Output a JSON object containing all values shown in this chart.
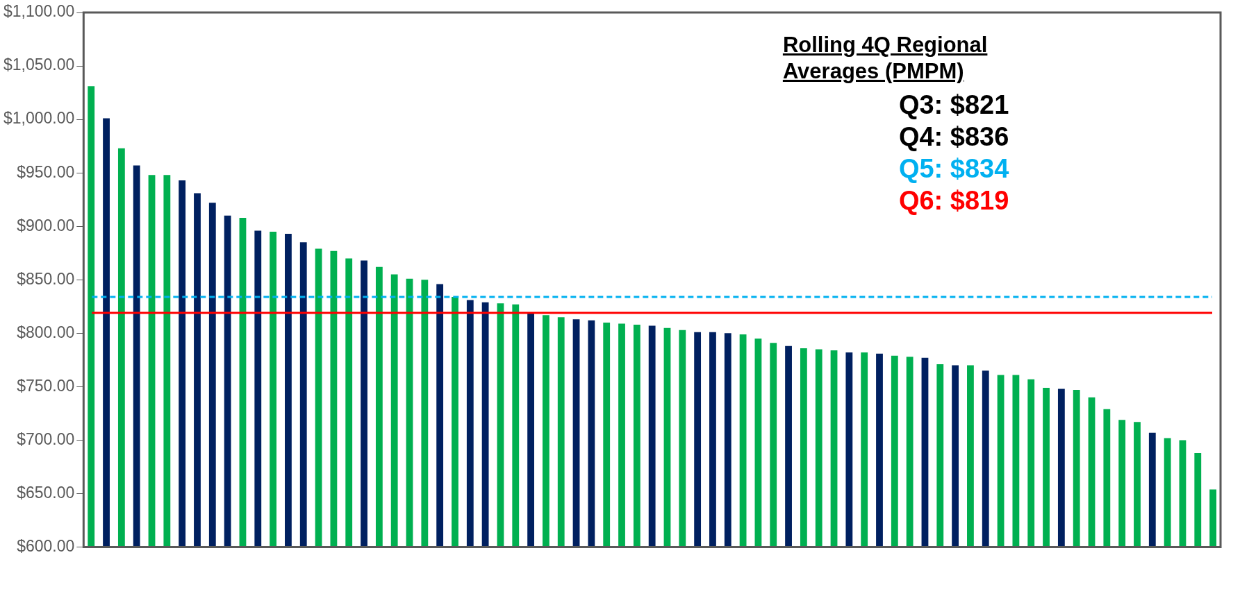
{
  "chart_data": {
    "type": "bar",
    "categories": [
      null,
      null,
      null,
      null,
      null,
      null,
      null,
      null,
      null,
      null,
      null,
      null,
      null,
      null,
      null,
      null,
      null,
      null,
      null,
      null,
      null,
      null,
      null,
      null,
      null,
      null,
      null,
      null,
      null,
      null,
      null,
      null,
      null,
      null,
      null,
      null,
      null,
      null,
      null,
      null,
      null,
      null,
      null,
      null,
      null,
      null,
      null,
      null,
      null,
      null,
      null,
      null,
      null,
      null,
      null,
      null,
      null,
      null,
      null,
      null,
      null,
      null,
      null,
      null,
      null,
      null,
      null,
      null,
      null,
      null,
      null,
      null,
      null,
      null,
      null
    ],
    "values": [
      1031,
      1001,
      973,
      957,
      948,
      948,
      943,
      931,
      922,
      910,
      908,
      896,
      895,
      893,
      885,
      879,
      877,
      870,
      868,
      862,
      855,
      851,
      850,
      846,
      834,
      831,
      829,
      828,
      827,
      819,
      817,
      815,
      813,
      812,
      810,
      809,
      808,
      807,
      805,
      803,
      801,
      801,
      800,
      799,
      795,
      791,
      788,
      786,
      785,
      784,
      782,
      782,
      781,
      779,
      778,
      777,
      771,
      770,
      770,
      765,
      761,
      761,
      757,
      749,
      748,
      747,
      740,
      729,
      719,
      717,
      707,
      702,
      700,
      688,
      654
    ],
    "colors": [
      "#00b050",
      "#002060",
      "#00b050",
      "#002060",
      "#00b050",
      "#00b050",
      "#002060",
      "#002060",
      "#002060",
      "#002060",
      "#00b050",
      "#002060",
      "#00b050",
      "#002060",
      "#002060",
      "#00b050",
      "#00b050",
      "#00b050",
      "#002060",
      "#00b050",
      "#00b050",
      "#00b050",
      "#00b050",
      "#002060",
      "#00b050",
      "#002060",
      "#002060",
      "#00b050",
      "#00b050",
      "#002060",
      "#00b050",
      "#00b050",
      "#002060",
      "#002060",
      "#00b050",
      "#00b050",
      "#00b050",
      "#002060",
      "#00b050",
      "#00b050",
      "#002060",
      "#002060",
      "#002060",
      "#00b050",
      "#00b050",
      "#00b050",
      "#002060",
      "#00b050",
      "#00b050",
      "#00b050",
      "#002060",
      "#00b050",
      "#002060",
      "#00b050",
      "#00b050",
      "#002060",
      "#00b050",
      "#002060",
      "#00b050",
      "#002060",
      "#00b050",
      "#00b050",
      "#00b050",
      "#00b050",
      "#002060",
      "#00b050",
      "#00b050",
      "#00b050",
      "#00b050",
      "#00b050",
      "#002060",
      "#00b050",
      "#00b050",
      "#00b050",
      "#00b050"
    ],
    "ylim": [
      600,
      1100
    ],
    "yticks": [
      {
        "value": 600,
        "label": "$600.00"
      },
      {
        "value": 650,
        "label": "$650.00"
      },
      {
        "value": 700,
        "label": "$700.00"
      },
      {
        "value": 750,
        "label": "$750.00"
      },
      {
        "value": 800,
        "label": "$800.00"
      },
      {
        "value": 850,
        "label": "$850.00"
      },
      {
        "value": 900,
        "label": "$900.00"
      },
      {
        "value": 950,
        "label": "$950.00"
      },
      {
        "value": 1000,
        "label": "$1,000.00"
      },
      {
        "value": 1050,
        "label": "$1,050.00"
      },
      {
        "value": 1100,
        "label": "$1,100.00"
      }
    ],
    "grid": false,
    "legend": false,
    "ref_lines": [
      {
        "axis": "y",
        "value": 834,
        "label": "Q5: $834",
        "color": "#00b0f0",
        "line_style": "dashed"
      },
      {
        "axis": "y",
        "value": 819,
        "label": "Q6: $819",
        "color": "#ff0000",
        "line_style": "solid"
      }
    ],
    "annotations": [
      "Rolling 4Q Regional Averages (PMPM)",
      "Q3: $821",
      "Q4: $836"
    ]
  }
}
